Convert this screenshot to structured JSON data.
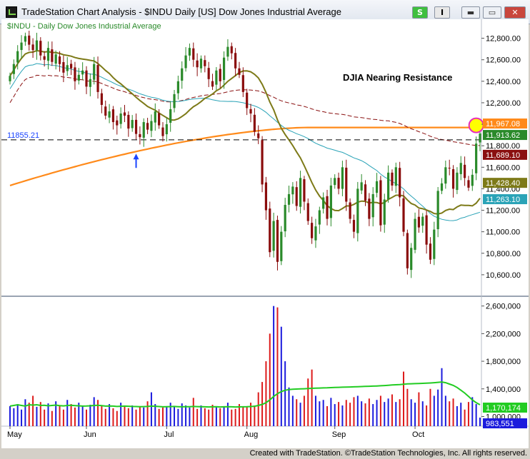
{
  "window": {
    "title": "TradeStation Chart Analysis - $INDU Daily [US] Dow Jones Industrial Average",
    "buttons": {
      "strategy": "S",
      "indicator": "I",
      "minimize": "▬",
      "maximize": "▭",
      "close": "✕"
    }
  },
  "footer": {
    "text": "Created with TradeStation. ©TradeStation Technologies, Inc. All rights reserved."
  },
  "colors": {
    "candle_up": "#2a8a2a",
    "candle_down": "#8a0c0c",
    "ma20": "#7d7a18",
    "ma50": "#2aa3b7",
    "ma100": "#8a1010",
    "ma200": "#ff8a1a",
    "vol_up": "#1b1bdd",
    "vol_down": "#dd1b1b",
    "vol_avg": "#22cc22",
    "support_line": "#000000",
    "arrow": "#1a44ff",
    "highlight_circle": "#e62bbd",
    "highlight_fill": "#ffff00"
  },
  "chart_data": [
    {
      "type": "candlestick",
      "series_label": "$INDU - Daily  Dow Jones Industrial Average",
      "annotation": "DJIA Nearing Resistance",
      "support_level_label": "11855.21",
      "x_labels": [
        "May",
        "Jun",
        "Jul",
        "Aug",
        "Sep",
        "Oct"
      ],
      "y_ticks": [
        "12,800.00",
        "12,600.00",
        "12,400.00",
        "12,200.00",
        "12,000.00",
        "11,800.00",
        "11,600.00",
        "11,400.00",
        "11,200.00",
        "11,000.00",
        "10,800.00",
        "10,600.00"
      ],
      "y_range": [
        10420,
        12950
      ],
      "badges": [
        {
          "name": "ma200-value",
          "value": "11,967.08",
          "color": "#ff8a1a"
        },
        {
          "name": "last-price",
          "value": "11,913.62",
          "color": "#2a8a2a"
        },
        {
          "name": "ma100-value",
          "value": "11,689.10",
          "color": "#8a1010"
        },
        {
          "name": "ma20-value",
          "value": "11,428.40",
          "color": "#7d7a18"
        },
        {
          "name": "ma50-value",
          "value": "11,263.10",
          "color": "#2aa3b7"
        }
      ],
      "closes": [
        12450,
        12560,
        12680,
        12760,
        12820,
        12740,
        12690,
        12780,
        12640,
        12600,
        12710,
        12580,
        12650,
        12560,
        12480,
        12550,
        12520,
        12400,
        12460,
        12500,
        12350,
        12420,
        12560,
        12300,
        12180,
        12080,
        12120,
        12020,
        11990,
        12100,
        12080,
        11960,
        12040,
        11910,
        11880,
        12020,
        11950,
        12030,
        12120,
        11990,
        11890,
        12000,
        12140,
        12280,
        12400,
        12520,
        12640,
        12710,
        12600,
        12530,
        12610,
        12540,
        12420,
        12350,
        12500,
        12400,
        12620,
        12720,
        12660,
        12520,
        12460,
        12300,
        12150,
        12100,
        11930,
        11870,
        11440,
        11200,
        10810,
        11100,
        10720,
        11000,
        11250,
        11350,
        11420,
        11240,
        11500,
        11280,
        11100,
        10940,
        11050,
        11200,
        11320,
        11120,
        11430,
        11500,
        11400,
        11600,
        11280,
        11120,
        11000,
        11400,
        11460,
        11290,
        11120,
        11350,
        11470,
        11060,
        11300,
        11550,
        11430,
        11600,
        11320,
        11000,
        10660,
        10850,
        11120,
        11040,
        11140,
        10880,
        10740,
        11020,
        11380,
        11450,
        11600,
        11590,
        11400,
        11550,
        11640,
        11500,
        11410,
        11530,
        11820,
        11913.62
      ],
      "volume_ticks": [
        "2,600,000",
        "2,200,000",
        "1,800,000",
        "1,400,000",
        "1,000,000"
      ],
      "volume_range": [
        860000,
        2700000
      ],
      "volume_badges": [
        {
          "name": "volume-average",
          "value": "1,170,174",
          "color": "#22cc22"
        },
        {
          "name": "volume-last",
          "value": "983,551",
          "color": "#1b1bdd"
        }
      ],
      "volumes": [
        1150000,
        1120000,
        1180000,
        1100000,
        1250000,
        1200000,
        1300000,
        1140000,
        1210000,
        1100000,
        1190000,
        1080000,
        1220000,
        1160000,
        1100000,
        1240000,
        1180000,
        1130000,
        1200000,
        1160000,
        1100000,
        1170000,
        1280000,
        1240000,
        1160000,
        1110000,
        1180000,
        1120000,
        1080000,
        1200000,
        1140000,
        1120000,
        1160000,
        1100000,
        1150000,
        1130000,
        1220000,
        1350000,
        1180000,
        1110000,
        1130000,
        1150000,
        1200000,
        1150000,
        1110000,
        1190000,
        1160000,
        1130000,
        1270000,
        1110000,
        1160000,
        1120000,
        1100000,
        1170000,
        1140000,
        1120000,
        1150000,
        1200000,
        1100000,
        1110000,
        1180000,
        1140000,
        1150000,
        1200000,
        1160000,
        1350000,
        1500000,
        1800000,
        2200000,
        2600000,
        2580000,
        2300000,
        1800000,
        1420000,
        1300000,
        1250000,
        1200000,
        1300000,
        1550000,
        1680000,
        1300000,
        1220000,
        1240000,
        1150000,
        1270000,
        1180000,
        1210000,
        1160000,
        1240000,
        1200000,
        1280000,
        1300000,
        1220000,
        1190000,
        1260000,
        1180000,
        1240000,
        1300000,
        1210000,
        1260000,
        1320000,
        1210000,
        1250000,
        1650000,
        1400000,
        1250000,
        1200000,
        1350000,
        1220000,
        1160000,
        1400000,
        1300000,
        1390000,
        1700000,
        1300000,
        1220000,
        1260000,
        1150000,
        1200000,
        1100000,
        1210000,
        1280000,
        1180000,
        983551
      ],
      "volume_avg": [
        1150000,
        1160000,
        1170000,
        1160000,
        1150000,
        1170000,
        1165000,
        1170000,
        1160000,
        1162000,
        1155000,
        1160000,
        1165000,
        1158000,
        1154000,
        1160000,
        1162000,
        1158000,
        1155000,
        1150000,
        1152000,
        1155000,
        1160000,
        1162000,
        1158000,
        1150000,
        1152000,
        1150000,
        1145000,
        1148000,
        1150000,
        1148000,
        1145000,
        1144000,
        1142000,
        1143000,
        1145000,
        1150000,
        1148000,
        1144000,
        1140000,
        1141000,
        1143000,
        1145000,
        1142000,
        1140000,
        1141000,
        1142000,
        1145000,
        1143000,
        1141000,
        1140000,
        1138000,
        1140000,
        1141000,
        1138000,
        1140000,
        1142000,
        1140000,
        1138000,
        1139000,
        1140000,
        1141000,
        1144000,
        1148000,
        1160000,
        1175000,
        1200000,
        1240000,
        1290000,
        1330000,
        1360000,
        1380000,
        1390000,
        1395000,
        1398000,
        1400000,
        1402000,
        1405000,
        1408000,
        1410000,
        1412000,
        1414000,
        1415000,
        1418000,
        1420000,
        1422000,
        1424000,
        1426000,
        1428000,
        1430000,
        1432000,
        1434000,
        1436000,
        1438000,
        1440000,
        1442000,
        1445000,
        1448000,
        1452000,
        1456000,
        1460000,
        1462000,
        1468000,
        1472000,
        1474000,
        1476000,
        1478000,
        1480000,
        1482000,
        1485000,
        1490000,
        1495000,
        1500000,
        1490000,
        1470000,
        1450000,
        1420000,
        1380000,
        1340000,
        1290000,
        1240000,
        1200000,
        1170174
      ]
    }
  ]
}
